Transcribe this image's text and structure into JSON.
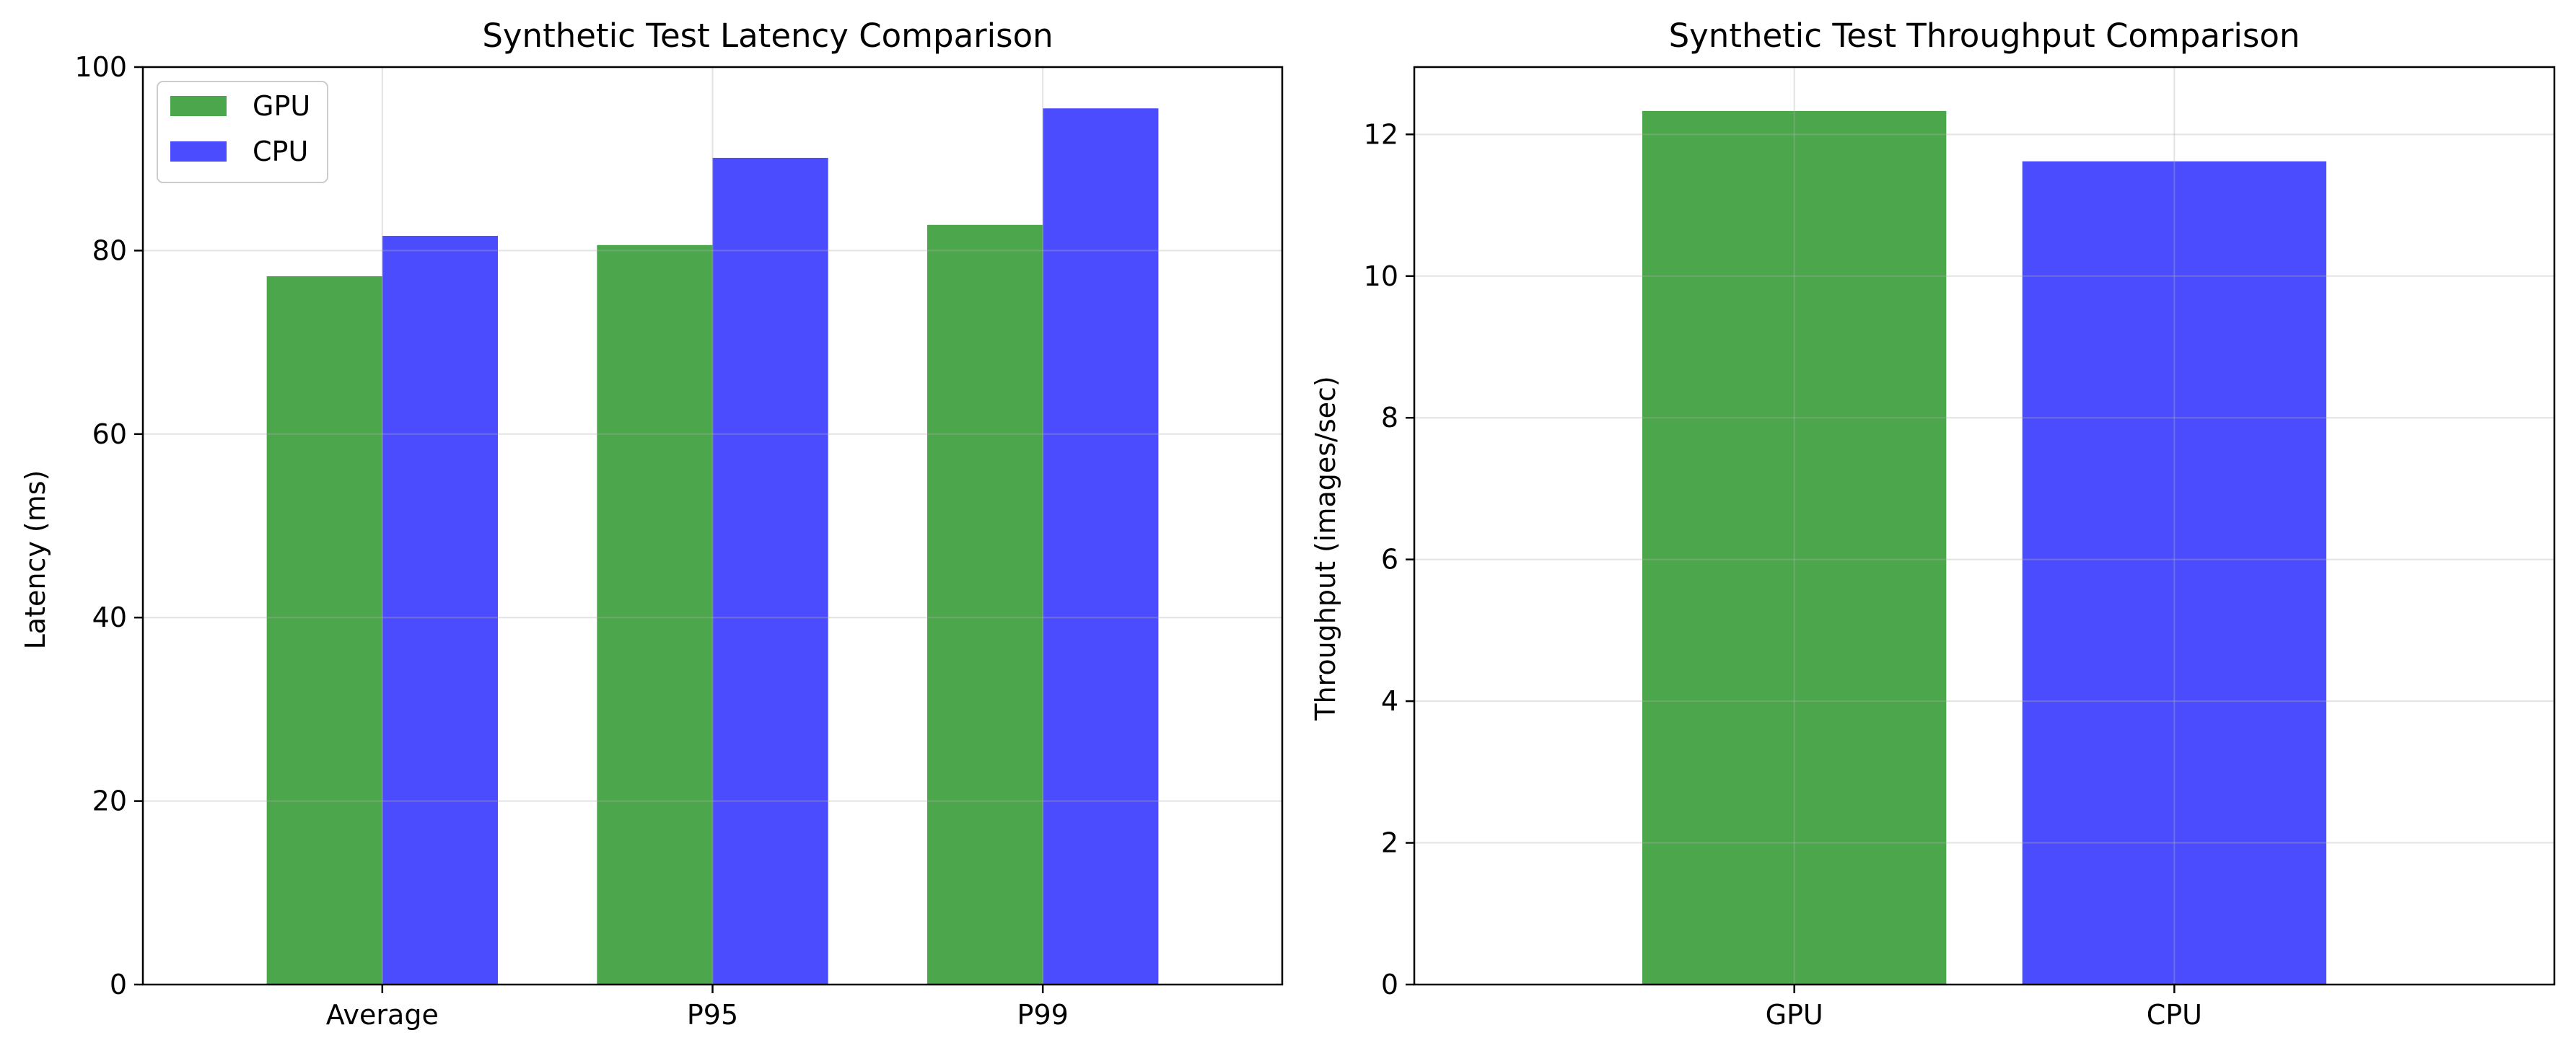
{
  "chart_data": [
    {
      "type": "bar",
      "title": "Synthetic Test Latency Comparison",
      "xlabel": "",
      "ylabel": "Latency (ms)",
      "categories": [
        "Average",
        "P95",
        "P99"
      ],
      "series": [
        {
          "name": "GPU",
          "values": [
            77.2,
            80.6,
            82.8
          ],
          "color": "#4ca64c"
        },
        {
          "name": "CPU",
          "values": [
            81.6,
            90.1,
            95.5
          ],
          "color": "#4c4cff"
        }
      ],
      "ylim": [
        0,
        100
      ],
      "yticks": [
        0,
        20,
        40,
        60,
        80,
        100
      ],
      "grid": true,
      "legend": "top-left"
    },
    {
      "type": "bar",
      "title": "Synthetic Test Throughput Comparison",
      "xlabel": "",
      "ylabel": "Throughput (images/sec)",
      "categories": [
        "GPU",
        "CPU"
      ],
      "values": [
        12.33,
        11.62
      ],
      "colors": [
        "#4ca64c",
        "#4c4cff"
      ],
      "ylim": [
        0,
        12.95
      ],
      "yticks": [
        0,
        2,
        4,
        6,
        8,
        10,
        12
      ],
      "grid": true
    }
  ]
}
